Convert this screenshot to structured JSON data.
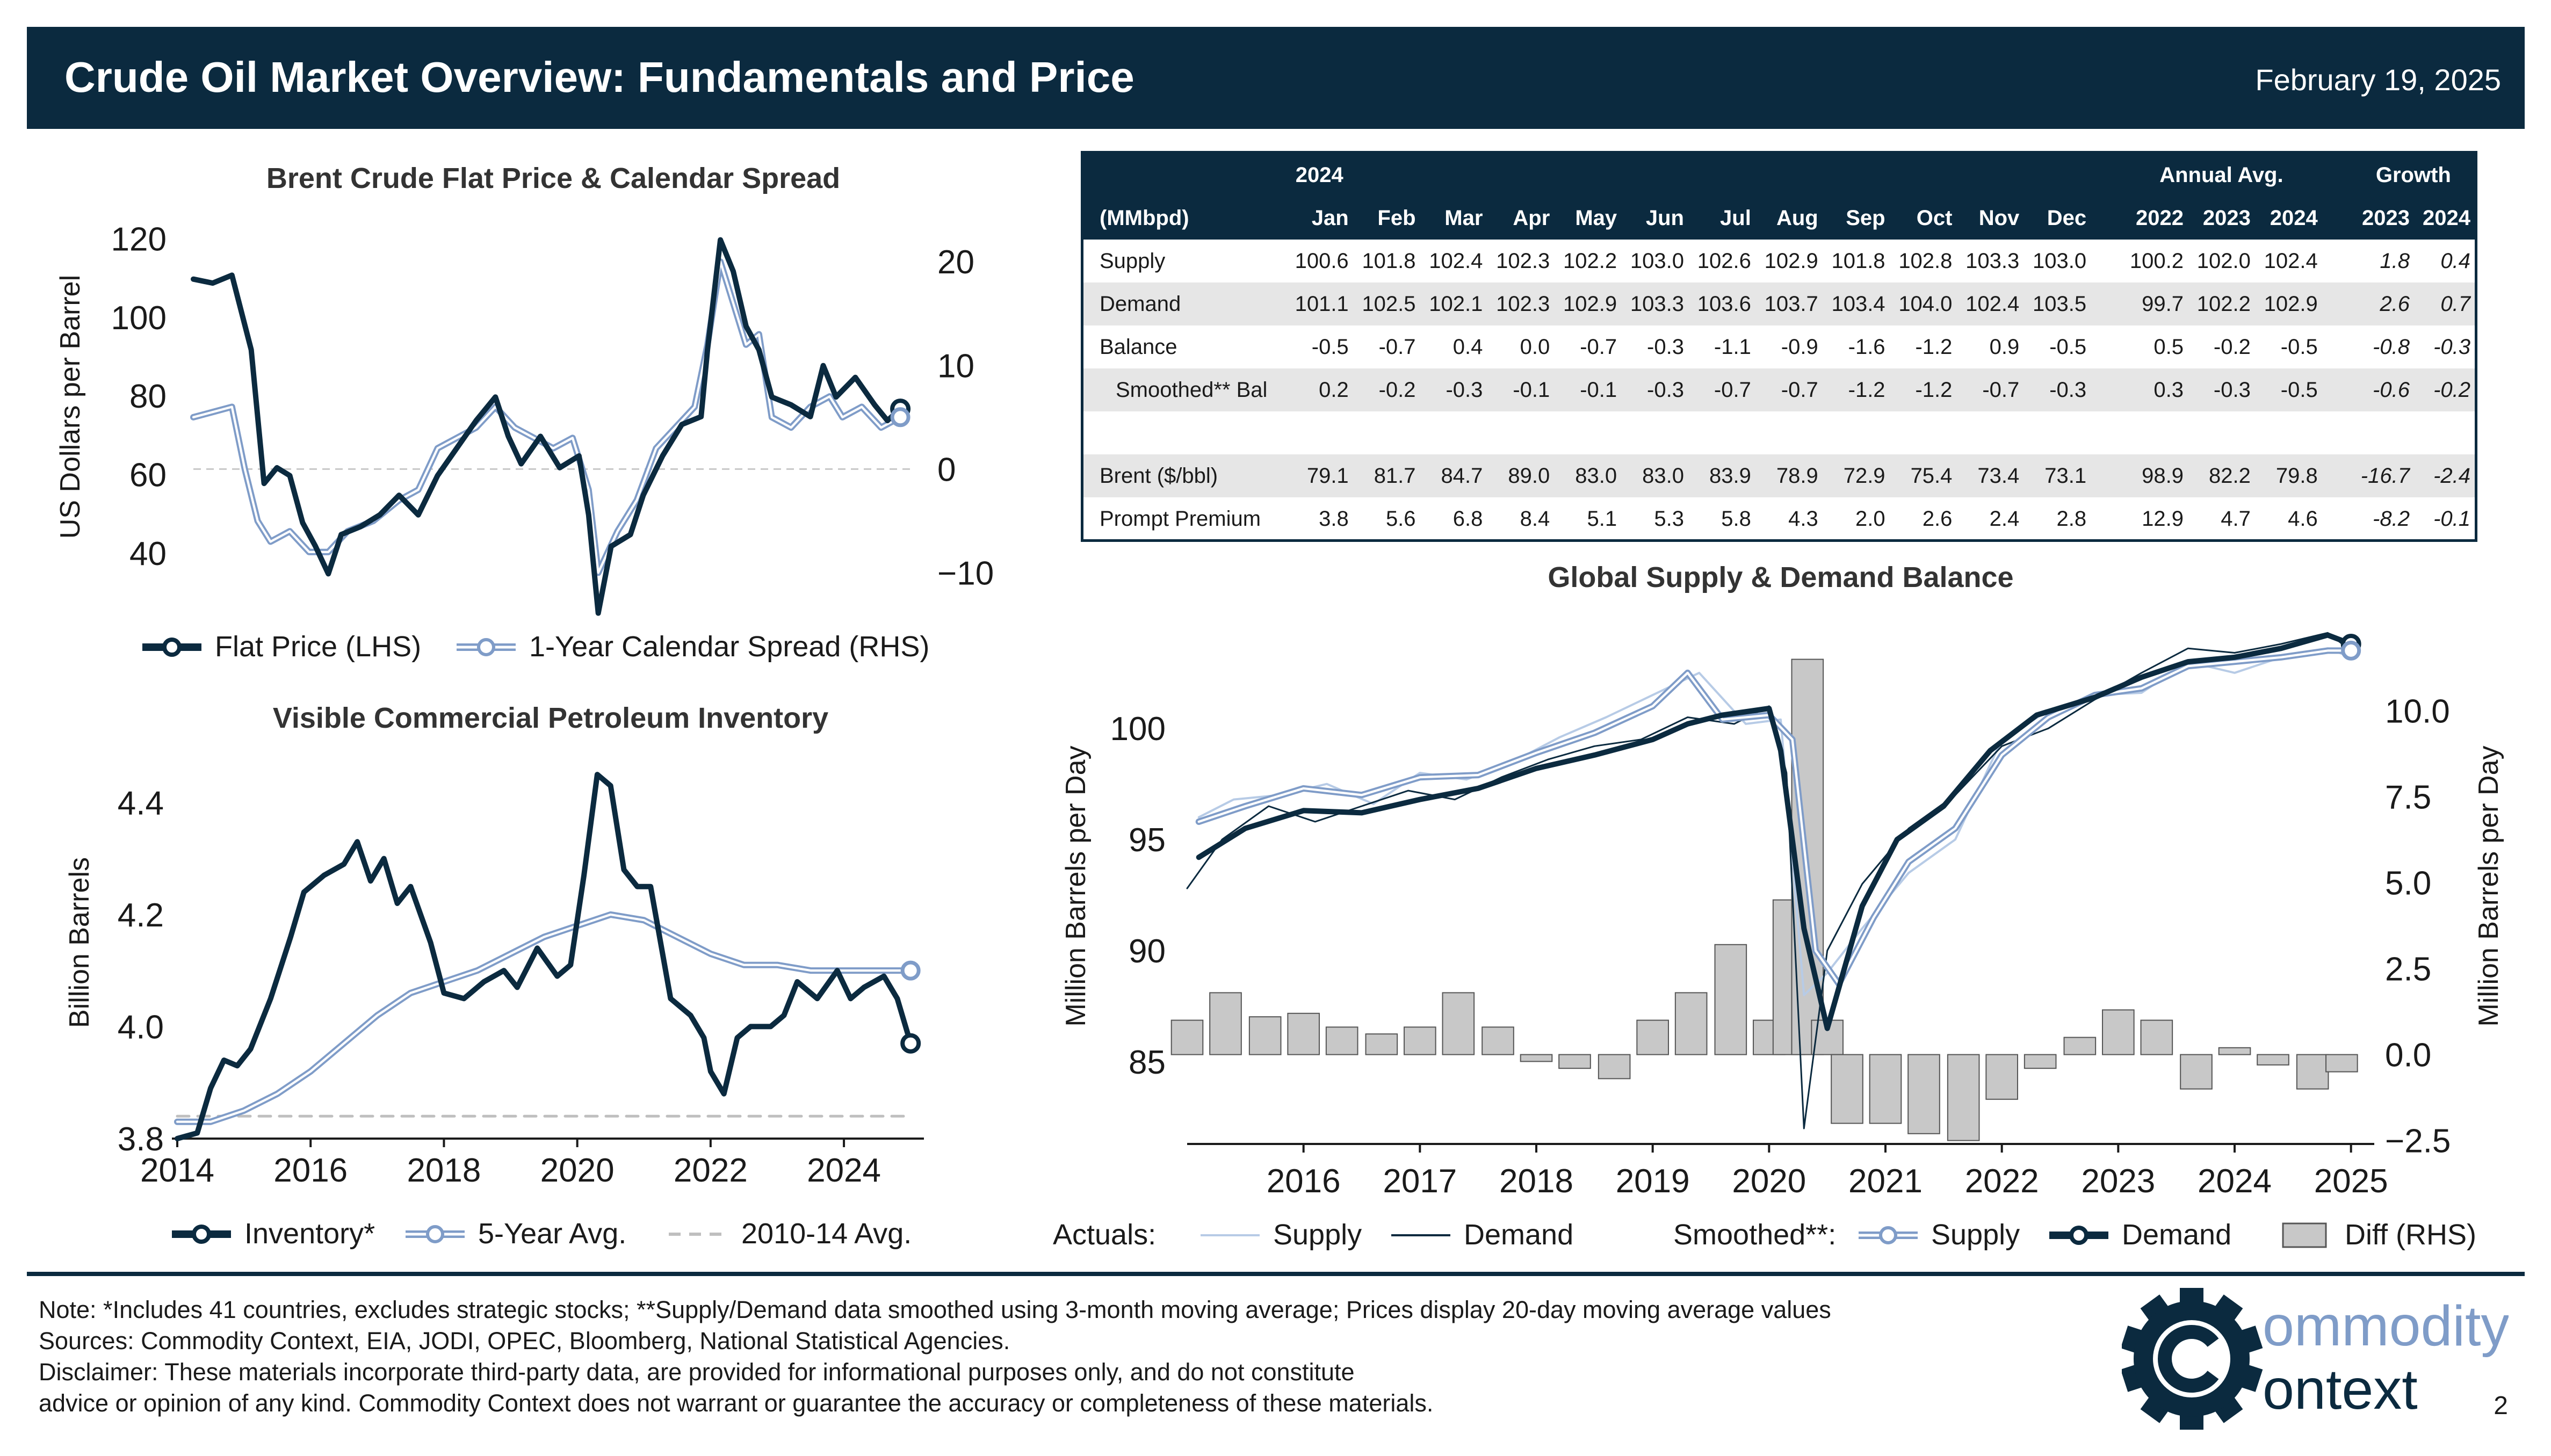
{
  "header": {
    "title": "Crude Oil Market Overview: Fundamentals and Price",
    "date": "February 19, 2025"
  },
  "colors": {
    "navy": "#0b2a3f",
    "steel": "#7f9cc8",
    "light_blue": "#b7cbe6",
    "gray_bar": "#c8c8c8",
    "gray_dash": "#bfbfbf"
  },
  "chart_data": [
    {
      "id": "brent",
      "type": "line",
      "title": "Brent Crude Flat Price & Calendar Spread",
      "ylabel": "US Dollars per Barrel",
      "ylim": [
        30,
        125
      ],
      "y2lim": [
        -12,
        24
      ],
      "yticks": [
        "40",
        "60",
        "80",
        "100",
        "120"
      ],
      "y2ticks": [
        "−10",
        "0",
        "10",
        "20"
      ],
      "xlim": [
        2014,
        2025.2
      ],
      "legend": [
        "Flat Price (LHS)",
        "1-Year Calendar Spread (RHS)"
      ],
      "legend_position": "bottom",
      "series": [
        {
          "name": "Flat Price (LHS)",
          "axis": "left",
          "color": "#0b2a3f",
          "x": [
            2014.0,
            2014.3,
            2014.6,
            2014.9,
            2015.1,
            2015.3,
            2015.5,
            2015.7,
            2015.9,
            2016.1,
            2016.3,
            2016.6,
            2016.9,
            2017.2,
            2017.5,
            2017.8,
            2018.1,
            2018.4,
            2018.7,
            2018.9,
            2019.1,
            2019.4,
            2019.7,
            2020.0,
            2020.15,
            2020.3,
            2020.5,
            2020.8,
            2021.0,
            2021.3,
            2021.6,
            2021.9,
            2022.0,
            2022.2,
            2022.4,
            2022.6,
            2022.8,
            2023.0,
            2023.3,
            2023.6,
            2023.8,
            2024.0,
            2024.3,
            2024.6,
            2024.8,
            2025.0
          ],
          "values": [
            110,
            109,
            111,
            92,
            58,
            62,
            60,
            48,
            42,
            35,
            45,
            47,
            50,
            55,
            50,
            60,
            67,
            74,
            80,
            70,
            63,
            70,
            62,
            65,
            50,
            25,
            42,
            45,
            55,
            65,
            73,
            75,
            92,
            120,
            112,
            98,
            92,
            80,
            78,
            75,
            88,
            80,
            85,
            78,
            74,
            77
          ]
        },
        {
          "name": "1-Year Calendar Spread (RHS)",
          "axis": "right",
          "color": "#7f9cc8",
          "x": [
            2014.0,
            2014.3,
            2014.6,
            2014.8,
            2015.0,
            2015.2,
            2015.5,
            2015.8,
            2016.1,
            2016.4,
            2016.8,
            2017.2,
            2017.5,
            2017.8,
            2018.1,
            2018.4,
            2018.7,
            2019.0,
            2019.3,
            2019.6,
            2019.9,
            2020.15,
            2020.3,
            2020.6,
            2020.9,
            2021.2,
            2021.5,
            2021.8,
            2022.0,
            2022.2,
            2022.4,
            2022.6,
            2022.8,
            2023.0,
            2023.3,
            2023.6,
            2023.9,
            2024.1,
            2024.4,
            2024.7,
            2025.0
          ],
          "values": [
            5,
            5.5,
            6,
            0,
            -5,
            -7,
            -6,
            -8,
            -8,
            -6,
            -5,
            -3,
            -2,
            2,
            3,
            4,
            6,
            4,
            3,
            2,
            3,
            -2,
            -10,
            -6,
            -3,
            2,
            4,
            6,
            12,
            20,
            16,
            12,
            13,
            5,
            4,
            6,
            7,
            5,
            6,
            4,
            5
          ]
        }
      ]
    },
    {
      "id": "inventory",
      "type": "line",
      "title": "Visible Commercial Petroleum Inventory",
      "ylabel": "Billion Barrels",
      "ylim": [
        3.8,
        4.5
      ],
      "yticks": [
        "3.8",
        "4.0",
        "4.2",
        "4.4"
      ],
      "xlim": [
        2014,
        2025.2
      ],
      "xticks": [
        "2014",
        "2016",
        "2018",
        "2020",
        "2022",
        "2024"
      ],
      "legend": [
        "Inventory*",
        "5-Year Avg.",
        "2010-14 Avg."
      ],
      "legend_position": "bottom",
      "series": [
        {
          "name": "Inventory*",
          "color": "#0b2a3f",
          "x": [
            2014.0,
            2014.3,
            2014.5,
            2014.7,
            2014.9,
            2015.1,
            2015.4,
            2015.7,
            2015.9,
            2016.2,
            2016.5,
            2016.7,
            2016.9,
            2017.1,
            2017.3,
            2017.5,
            2017.8,
            2018.0,
            2018.3,
            2018.6,
            2018.9,
            2019.1,
            2019.4,
            2019.7,
            2019.9,
            2020.1,
            2020.3,
            2020.5,
            2020.7,
            2020.9,
            2021.1,
            2021.4,
            2021.7,
            2021.9,
            2022.0,
            2022.2,
            2022.4,
            2022.6,
            2022.9,
            2023.1,
            2023.3,
            2023.6,
            2023.9,
            2024.1,
            2024.3,
            2024.6,
            2024.8,
            2025.0
          ],
          "values": [
            3.8,
            3.81,
            3.89,
            3.94,
            3.93,
            3.96,
            4.05,
            4.16,
            4.24,
            4.27,
            4.29,
            4.33,
            4.26,
            4.3,
            4.22,
            4.25,
            4.15,
            4.06,
            4.05,
            4.08,
            4.1,
            4.07,
            4.14,
            4.09,
            4.11,
            4.27,
            4.45,
            4.43,
            4.28,
            4.25,
            4.25,
            4.05,
            4.02,
            3.98,
            3.92,
            3.88,
            3.98,
            4.0,
            4.0,
            4.02,
            4.08,
            4.05,
            4.1,
            4.05,
            4.07,
            4.09,
            4.05,
            3.97
          ]
        },
        {
          "name": "5-Year Avg.",
          "color": "#7f9cc8",
          "x": [
            2014.0,
            2014.5,
            2015.0,
            2015.5,
            2016.0,
            2016.5,
            2017.0,
            2017.5,
            2018.0,
            2018.5,
            2019.0,
            2019.5,
            2020.0,
            2020.5,
            2021.0,
            2021.5,
            2022.0,
            2022.5,
            2023.0,
            2023.5,
            2024.0,
            2024.5,
            2025.0
          ],
          "values": [
            3.83,
            3.83,
            3.85,
            3.88,
            3.92,
            3.97,
            4.02,
            4.06,
            4.08,
            4.1,
            4.13,
            4.16,
            4.18,
            4.2,
            4.19,
            4.16,
            4.13,
            4.11,
            4.11,
            4.1,
            4.1,
            4.1,
            4.1
          ]
        },
        {
          "name": "2010-14 Avg.",
          "color": "#bfbfbf",
          "dashed": true,
          "x": [
            2014.0,
            2025.0
          ],
          "values": [
            3.84,
            3.84
          ]
        }
      ]
    },
    {
      "id": "balance",
      "type": "line",
      "title": "Global Supply & Demand Balance",
      "ylabel": "Million Barrels per Day",
      "y2label": "Million Barrels per Day",
      "ylim": [
        81.3,
        104.5
      ],
      "y2lim": [
        -2.6,
        12.4
      ],
      "yticks": [
        "85",
        "90",
        "95",
        "100"
      ],
      "y2ticks": [
        "−2.5",
        "0.0",
        "2.5",
        "5.0",
        "7.5",
        "10.0"
      ],
      "xlim": [
        2015.0,
        2025.2
      ],
      "xticks": [
        "2016",
        "2017",
        "2018",
        "2019",
        "2020",
        "2021",
        "2022",
        "2023",
        "2024",
        "2025"
      ],
      "legend_prefix_actuals": "Actuals:",
      "legend_prefix_smoothed": "Smoothed**:",
      "legend": [
        "Supply",
        "Demand",
        "Supply",
        "Demand",
        "Diff (RHS)"
      ],
      "legend_position": "bottom",
      "series": [
        {
          "name": "Supply (smoothed)",
          "color": "#7f9cc8",
          "x": [
            2015.1,
            2015.5,
            2016.0,
            2016.5,
            2017.0,
            2017.5,
            2018.0,
            2018.5,
            2019.0,
            2019.3,
            2019.6,
            2020.0,
            2020.2,
            2020.4,
            2020.6,
            2020.9,
            2021.2,
            2021.6,
            2022.0,
            2022.4,
            2022.8,
            2023.2,
            2023.6,
            2024.0,
            2024.4,
            2024.8,
            2025.0
          ],
          "values": [
            95.8,
            96.5,
            97.3,
            97.0,
            97.8,
            97.9,
            98.9,
            99.8,
            101.0,
            102.5,
            100.4,
            100.6,
            99.5,
            90.0,
            88.5,
            91.5,
            94.0,
            95.5,
            98.8,
            100.5,
            101.5,
            101.8,
            102.8,
            103.0,
            103.2,
            103.5,
            103.5
          ]
        },
        {
          "name": "Demand (smoothed)",
          "color": "#0b2a3f",
          "x": [
            2015.1,
            2015.5,
            2016.0,
            2016.5,
            2017.0,
            2017.5,
            2018.0,
            2018.5,
            2019.0,
            2019.3,
            2019.6,
            2020.0,
            2020.1,
            2020.3,
            2020.5,
            2020.8,
            2021.1,
            2021.5,
            2021.9,
            2022.3,
            2022.8,
            2023.2,
            2023.6,
            2024.0,
            2024.4,
            2024.8,
            2025.0
          ],
          "values": [
            94.2,
            95.5,
            96.3,
            96.2,
            96.8,
            97.3,
            98.2,
            98.8,
            99.5,
            100.2,
            100.6,
            100.9,
            99.0,
            91.0,
            86.5,
            92.0,
            95.0,
            96.5,
            99.0,
            100.6,
            101.4,
            102.3,
            103.0,
            103.2,
            103.6,
            104.2,
            103.8
          ]
        },
        {
          "name": "Supply (actual)",
          "color": "#b7cbe6",
          "x": [
            2015.1,
            2015.4,
            2015.8,
            2016.2,
            2016.6,
            2017.0,
            2017.4,
            2017.8,
            2018.2,
            2018.6,
            2019.0,
            2019.4,
            2019.8,
            2020.1,
            2020.3,
            2020.5,
            2020.8,
            2021.2,
            2021.6,
            2022.0,
            2022.4,
            2022.8,
            2023.2,
            2023.6,
            2024.0,
            2024.4,
            2024.8,
            2025.0
          ],
          "values": [
            96.0,
            96.8,
            97.0,
            97.5,
            96.6,
            98.0,
            97.7,
            98.5,
            99.6,
            100.5,
            101.5,
            102.5,
            100.2,
            100.4,
            88.0,
            89.0,
            91.0,
            93.5,
            95.0,
            99.5,
            100.8,
            101.5,
            101.6,
            103.0,
            102.5,
            103.2,
            103.6,
            103.2
          ]
        },
        {
          "name": "Demand (actual)",
          "color": "#0b2a3f",
          "x": [
            2015.0,
            2015.3,
            2015.7,
            2016.1,
            2016.5,
            2016.9,
            2017.3,
            2017.7,
            2018.1,
            2018.5,
            2018.9,
            2019.3,
            2019.7,
            2020.0,
            2020.15,
            2020.3,
            2020.5,
            2020.8,
            2021.2,
            2021.6,
            2022.0,
            2022.4,
            2022.8,
            2023.2,
            2023.6,
            2024.0,
            2024.4,
            2024.8,
            2025.0
          ],
          "values": [
            92.8,
            95.0,
            96.5,
            95.8,
            96.5,
            97.2,
            96.8,
            97.8,
            98.6,
            99.2,
            99.5,
            100.5,
            100.2,
            101.0,
            98.0,
            82.0,
            90.0,
            93.0,
            95.5,
            97.0,
            99.2,
            100.0,
            101.3,
            102.5,
            103.6,
            103.4,
            103.8,
            104.3,
            103.5
          ]
        },
        {
          "name": "Diff (RHS)",
          "type": "bar",
          "axis": "right",
          "color": "#c8c8c8",
          "x": [
            2015.0,
            2015.33,
            2015.67,
            2016.0,
            2016.33,
            2016.67,
            2017.0,
            2017.33,
            2017.67,
            2018.0,
            2018.33,
            2018.67,
            2019.0,
            2019.33,
            2019.67,
            2020.0,
            2020.17,
            2020.33,
            2020.5,
            2020.67,
            2021.0,
            2021.33,
            2021.67,
            2022.0,
            2022.33,
            2022.67,
            2023.0,
            2023.33,
            2023.67,
            2024.0,
            2024.33,
            2024.67,
            2024.92
          ],
          "values": [
            1.0,
            1.8,
            1.1,
            1.2,
            0.8,
            0.6,
            0.8,
            1.8,
            0.8,
            -0.2,
            -0.4,
            -0.7,
            1.0,
            1.8,
            3.2,
            1.0,
            4.5,
            11.5,
            1.0,
            -2.0,
            -2.0,
            -2.3,
            -2.5,
            -1.3,
            -0.4,
            0.5,
            1.3,
            1.0,
            -1.0,
            0.2,
            -0.3,
            -1.0,
            -0.5
          ]
        }
      ]
    }
  ],
  "table": {
    "unit_label": "(MMbpd)",
    "year_label": "2024",
    "annual_label": "Annual Avg.",
    "growth_label": "Growth",
    "months": [
      "Jan",
      "Feb",
      "Mar",
      "Apr",
      "May",
      "Jun",
      "Jul",
      "Aug",
      "Sep",
      "Oct",
      "Nov",
      "Dec"
    ],
    "annual_years": [
      "2022",
      "2023",
      "2024"
    ],
    "growth_years": [
      "2023",
      "2024"
    ],
    "rows": [
      {
        "label": "Supply",
        "monthly": [
          "100.6",
          "101.8",
          "102.4",
          "102.3",
          "102.2",
          "103.0",
          "102.6",
          "102.9",
          "101.8",
          "102.8",
          "103.3",
          "103.0"
        ],
        "annual": [
          "100.2",
          "102.0",
          "102.4"
        ],
        "growth": [
          "1.8",
          "0.4"
        ]
      },
      {
        "label": "Demand",
        "monthly": [
          "101.1",
          "102.5",
          "102.1",
          "102.3",
          "102.9",
          "103.3",
          "103.6",
          "103.7",
          "103.4",
          "104.0",
          "102.4",
          "103.5"
        ],
        "annual": [
          "99.7",
          "102.2",
          "102.9"
        ],
        "growth": [
          "2.6",
          "0.7"
        ]
      },
      {
        "label": "Balance",
        "monthly": [
          "-0.5",
          "-0.7",
          "0.4",
          "0.0",
          "-0.7",
          "-0.3",
          "-1.1",
          "-0.9",
          "-1.6",
          "-1.2",
          "0.9",
          "-0.5"
        ],
        "annual": [
          "0.5",
          "-0.2",
          "-0.5"
        ],
        "growth": [
          "-0.8",
          "-0.3"
        ]
      },
      {
        "label": "Smoothed** Bal",
        "indent": true,
        "monthly": [
          "0.2",
          "-0.2",
          "-0.3",
          "-0.1",
          "-0.1",
          "-0.3",
          "-0.7",
          "-0.7",
          "-1.2",
          "-1.2",
          "-0.7",
          "-0.3"
        ],
        "annual": [
          "0.3",
          "-0.3",
          "-0.5"
        ],
        "growth": [
          "-0.6",
          "-0.2"
        ]
      },
      {
        "label": "",
        "monthly": [
          "",
          "",
          "",
          "",
          "",
          "",
          "",
          "",
          "",
          "",
          "",
          ""
        ],
        "annual": [
          "",
          "",
          ""
        ],
        "growth": [
          "",
          ""
        ]
      },
      {
        "label": "Brent ($/bbl)",
        "monthly": [
          "79.1",
          "81.7",
          "84.7",
          "89.0",
          "83.0",
          "83.0",
          "83.9",
          "78.9",
          "72.9",
          "75.4",
          "73.4",
          "73.1"
        ],
        "annual": [
          "98.9",
          "82.2",
          "79.8"
        ],
        "growth": [
          "-16.7",
          "-2.4"
        ]
      },
      {
        "label": "Prompt Premium",
        "monthly": [
          "3.8",
          "5.6",
          "6.8",
          "8.4",
          "5.1",
          "5.3",
          "5.8",
          "4.3",
          "2.0",
          "2.6",
          "2.4",
          "2.8"
        ],
        "annual": [
          "12.9",
          "4.7",
          "4.6"
        ],
        "growth": [
          "-8.2",
          "-0.1"
        ]
      }
    ]
  },
  "footer": {
    "note": "Note: *Includes 41 countries, excludes strategic stocks; **Supply/Demand data smoothed using 3-month moving average; Prices display 20-day moving average values",
    "sources": "Sources: Commodity Context, EIA, JODI, OPEC, Bloomberg, National Statistical Agencies.",
    "disclaimer1": "Disclaimer: These materials incorporate third-party data, are provided for informational purposes only, and do not constitute",
    "disclaimer2": "advice or opinion of any kind. Commodity Context does not warrant or guarantee the accuracy or completeness of these materials.",
    "logo_line1": "ommodity",
    "logo_line2": "ontext",
    "logo_icon": "gear-c-icon",
    "page_number": "2"
  }
}
